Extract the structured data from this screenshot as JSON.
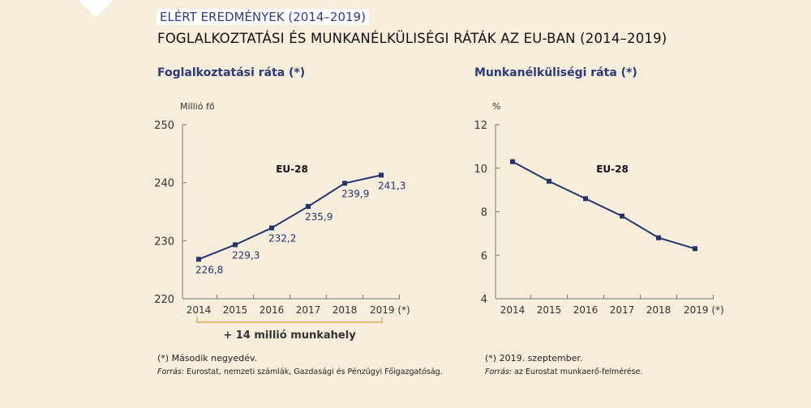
{
  "header": {
    "kicker": "ELÉRT EREDMÉNYEK (2014–2019)",
    "title": "FOGLALKOZTATÁSI ÉS MUNKANÉLKÜLISÉGI RÁTÁK AZ EU-BAN (2014–2019)"
  },
  "colors": {
    "background": "#f6eddb",
    "series": "#24346e",
    "bracket": "#e0a854",
    "kicker_text": "#2e3d8f"
  },
  "chart_data": [
    {
      "type": "line",
      "title": "Foglalkoztatási ráta (*)",
      "ylabel": "Millió fő",
      "ylim": [
        220,
        250
      ],
      "yticks": [
        "220",
        "230",
        "240",
        "250"
      ],
      "categories": [
        "2014",
        "2015",
        "2016",
        "2017",
        "2018",
        "2019 (*)"
      ],
      "series": [
        {
          "name": "EU-28",
          "values": [
            226.8,
            229.3,
            232.2,
            235.9,
            239.9,
            241.3
          ]
        }
      ],
      "data_labels": [
        "226,8",
        "229,3",
        "232,2",
        "235,9",
        "239,9",
        "241,3"
      ],
      "annotation": "+ 14 millió munkahely",
      "footnote": "(*) Második negyedév.",
      "source_label": "Forrás:",
      "source": "Eurostat, nemzeti számlák, Gazdasági és Pénzügyi Főigazgatóság.",
      "grid": false
    },
    {
      "type": "line",
      "title": "Munkanélküliségi ráta (*)",
      "ylabel": "%",
      "ylim": [
        4,
        12
      ],
      "yticks": [
        "4",
        "6",
        "8",
        "10",
        "12"
      ],
      "categories": [
        "2014",
        "2015",
        "2016",
        "2017",
        "2018",
        "2019 (*)"
      ],
      "series": [
        {
          "name": "EU-28",
          "values": [
            10.3,
            9.4,
            8.6,
            7.8,
            6.8,
            6.3
          ]
        }
      ],
      "footnote": "(*) 2019. szeptember.",
      "source_label": "Forrás:",
      "source": "az Eurostat munkaerő-felmérése.",
      "grid": false
    }
  ]
}
